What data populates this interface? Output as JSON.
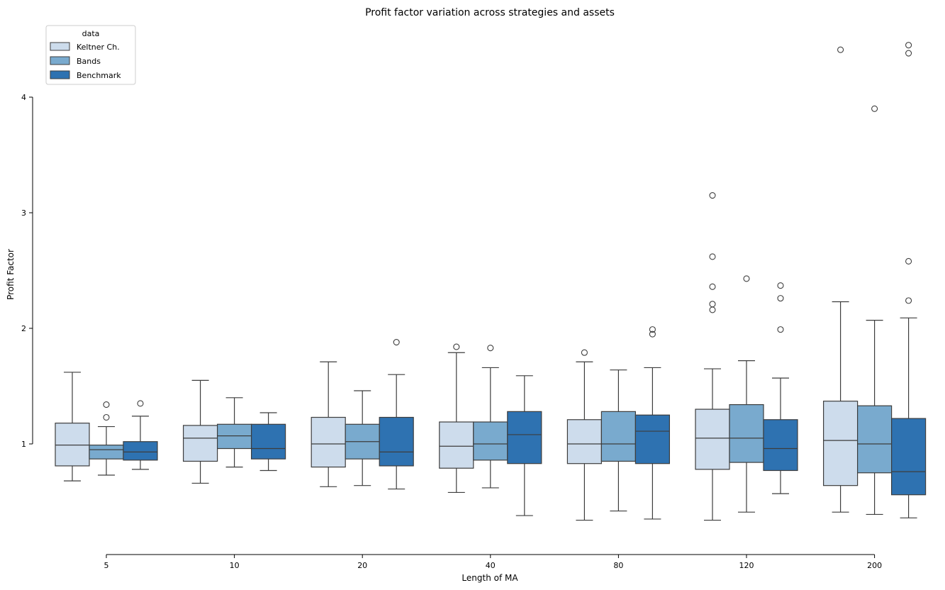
{
  "chart_data": {
    "type": "box",
    "title": "Profit factor variation across strategies and assets",
    "xlabel": "Length of MA",
    "ylabel": "Profit Factor",
    "categories": [
      "5",
      "10",
      "20",
      "40",
      "80",
      "120",
      "200"
    ],
    "yticks": [
      1,
      2,
      3,
      4
    ],
    "ylim": [
      0.05,
      4.85
    ],
    "grid": false,
    "legend": {
      "title": "data",
      "placement": "top-left"
    },
    "series": [
      {
        "name": "Keltner Ch.",
        "color": "#cddcec",
        "boxes": [
          {
            "whislo": 0.68,
            "q1": 0.81,
            "med": 0.99,
            "q3": 1.18,
            "whishi": 1.62,
            "fliers": []
          },
          {
            "whislo": 0.66,
            "q1": 0.85,
            "med": 1.05,
            "q3": 1.16,
            "whishi": 1.55,
            "fliers": []
          },
          {
            "whislo": 0.63,
            "q1": 0.8,
            "med": 1.0,
            "q3": 1.23,
            "whishi": 1.71,
            "fliers": []
          },
          {
            "whislo": 0.58,
            "q1": 0.79,
            "med": 0.98,
            "q3": 1.19,
            "whishi": 1.79,
            "fliers": [
              1.84
            ]
          },
          {
            "whislo": 0.34,
            "q1": 0.83,
            "med": 1.0,
            "q3": 1.21,
            "whishi": 1.71,
            "fliers": [
              1.79
            ]
          },
          {
            "whislo": 0.34,
            "q1": 0.78,
            "med": 1.05,
            "q3": 1.3,
            "whishi": 1.65,
            "fliers": [
              2.16,
              2.21,
              2.36,
              2.62,
              3.15
            ]
          },
          {
            "whislo": 0.41,
            "q1": 0.64,
            "med": 1.03,
            "q3": 1.37,
            "whishi": 2.23,
            "fliers": [
              4.41
            ]
          }
        ]
      },
      {
        "name": "Bands",
        "color": "#79aace",
        "boxes": [
          {
            "whislo": 0.73,
            "q1": 0.87,
            "med": 0.95,
            "q3": 0.99,
            "whishi": 1.15,
            "fliers": [
              1.23,
              1.34
            ]
          },
          {
            "whislo": 0.8,
            "q1": 0.96,
            "med": 1.07,
            "q3": 1.17,
            "whishi": 1.4,
            "fliers": []
          },
          {
            "whislo": 0.64,
            "q1": 0.87,
            "med": 1.02,
            "q3": 1.17,
            "whishi": 1.46,
            "fliers": []
          },
          {
            "whislo": 0.62,
            "q1": 0.86,
            "med": 1.0,
            "q3": 1.19,
            "whishi": 1.66,
            "fliers": [
              1.83
            ]
          },
          {
            "whislo": 0.42,
            "q1": 0.85,
            "med": 1.0,
            "q3": 1.28,
            "whishi": 1.64,
            "fliers": []
          },
          {
            "whislo": 0.41,
            "q1": 0.84,
            "med": 1.05,
            "q3": 1.34,
            "whishi": 1.72,
            "fliers": [
              2.43
            ]
          },
          {
            "whislo": 0.39,
            "q1": 0.75,
            "med": 1.0,
            "q3": 1.33,
            "whishi": 2.07,
            "fliers": [
              3.9
            ]
          }
        ]
      },
      {
        "name": "Benchmark",
        "color": "#2e72b1",
        "boxes": [
          {
            "whislo": 0.78,
            "q1": 0.86,
            "med": 0.93,
            "q3": 1.02,
            "whishi": 1.24,
            "fliers": [
              1.35
            ]
          },
          {
            "whislo": 0.77,
            "q1": 0.87,
            "med": 0.96,
            "q3": 1.17,
            "whishi": 1.27,
            "fliers": []
          },
          {
            "whislo": 0.61,
            "q1": 0.81,
            "med": 0.93,
            "q3": 1.23,
            "whishi": 1.6,
            "fliers": [
              1.88
            ]
          },
          {
            "whislo": 0.38,
            "q1": 0.83,
            "med": 1.08,
            "q3": 1.28,
            "whishi": 1.59,
            "fliers": []
          },
          {
            "whislo": 0.35,
            "q1": 0.83,
            "med": 1.11,
            "q3": 1.25,
            "whishi": 1.66,
            "fliers": [
              1.95,
              1.99
            ]
          },
          {
            "whislo": 0.57,
            "q1": 0.77,
            "med": 0.96,
            "q3": 1.21,
            "whishi": 1.57,
            "fliers": [
              1.99,
              2.26,
              2.37
            ]
          },
          {
            "whislo": 0.36,
            "q1": 0.56,
            "med": 0.76,
            "q3": 1.22,
            "whishi": 2.09,
            "fliers": [
              2.24,
              2.58,
              4.38,
              4.45
            ]
          }
        ]
      }
    ]
  }
}
